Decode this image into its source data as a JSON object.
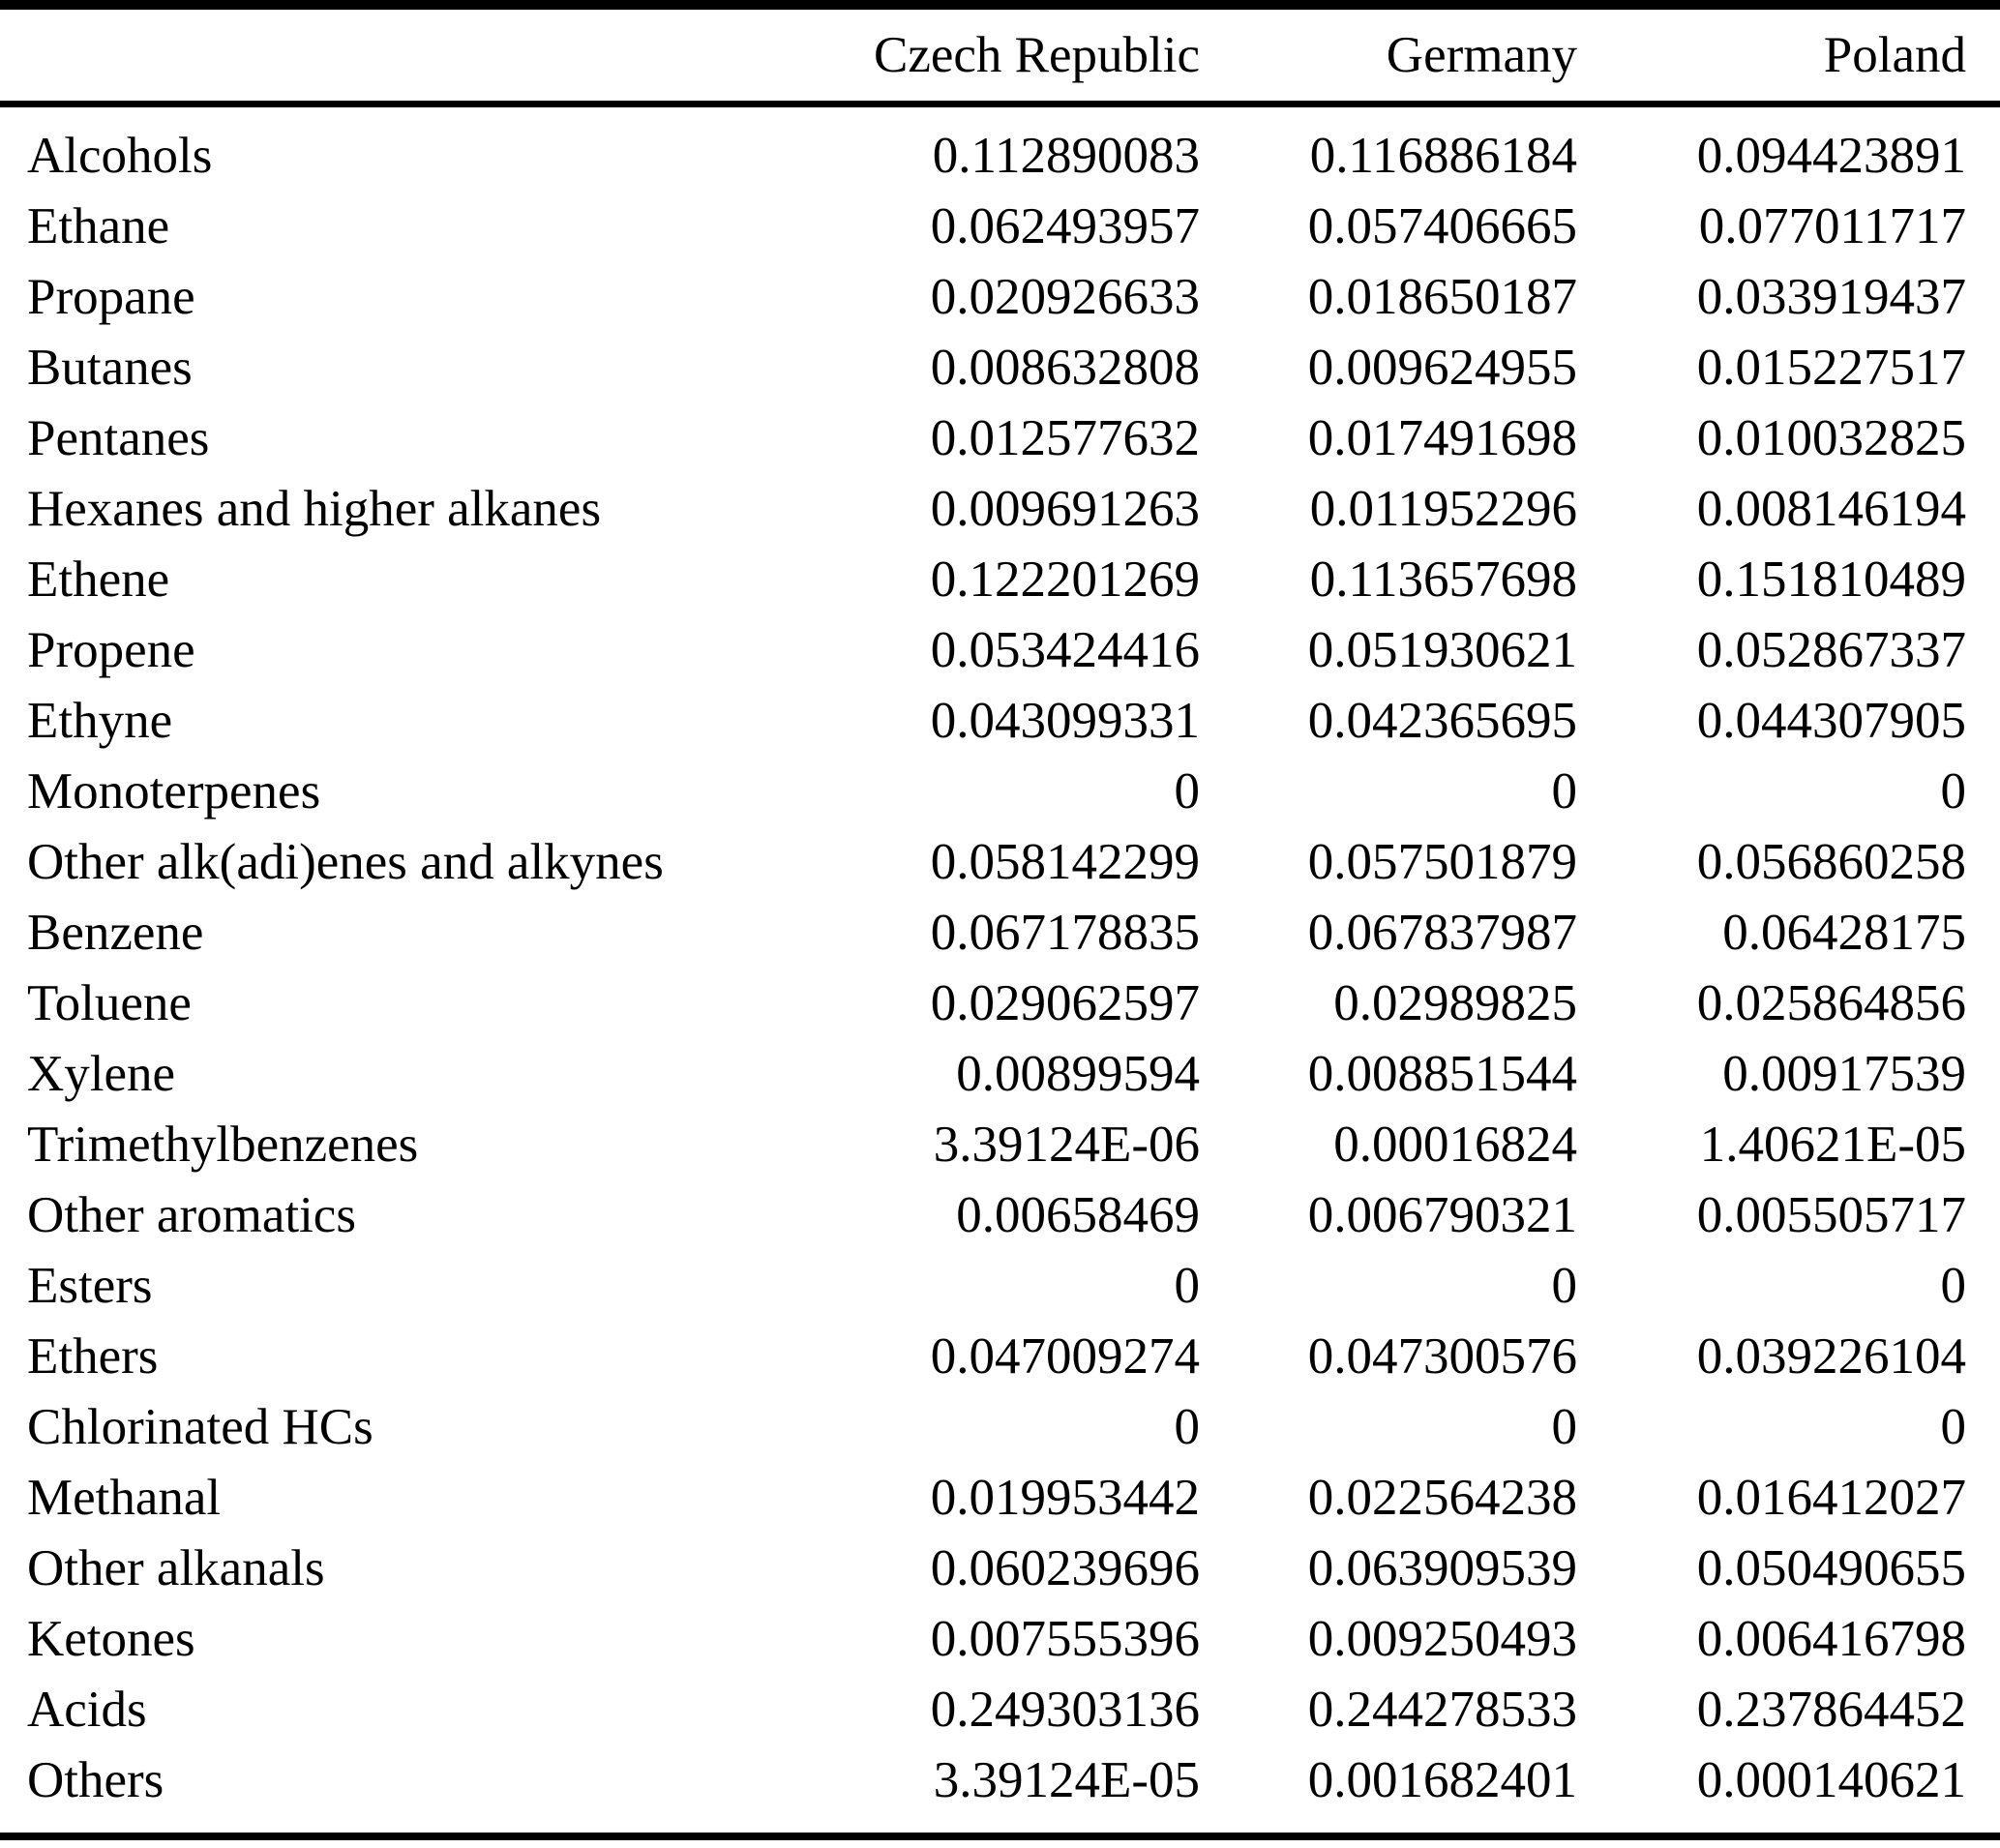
{
  "chart_data": {
    "type": "table",
    "columns": [
      "",
      "Czech Republic",
      "Germany",
      "Poland"
    ],
    "rows": [
      {
        "label": "Alcohols",
        "values": [
          "0.112890083",
          "0.116886184",
          "0.094423891"
        ]
      },
      {
        "label": "Ethane",
        "values": [
          "0.062493957",
          "0.057406665",
          "0.077011717"
        ]
      },
      {
        "label": "Propane",
        "values": [
          "0.020926633",
          "0.018650187",
          "0.033919437"
        ]
      },
      {
        "label": "Butanes",
        "values": [
          "0.008632808",
          "0.009624955",
          "0.015227517"
        ]
      },
      {
        "label": "Pentanes",
        "values": [
          "0.012577632",
          "0.017491698",
          "0.010032825"
        ]
      },
      {
        "label": "Hexanes and higher alkanes",
        "values": [
          "0.009691263",
          "0.011952296",
          "0.008146194"
        ]
      },
      {
        "label": "Ethene",
        "values": [
          "0.122201269",
          "0.113657698",
          "0.151810489"
        ]
      },
      {
        "label": "Propene",
        "values": [
          "0.053424416",
          "0.051930621",
          "0.052867337"
        ]
      },
      {
        "label": "Ethyne",
        "values": [
          "0.043099331",
          "0.042365695",
          "0.044307905"
        ]
      },
      {
        "label": "Monoterpenes",
        "values": [
          "0",
          "0",
          "0"
        ]
      },
      {
        "label": "Other alk(adi)enes and alkynes",
        "values": [
          "0.058142299",
          "0.057501879",
          "0.056860258"
        ]
      },
      {
        "label": "Benzene",
        "values": [
          "0.067178835",
          "0.067837987",
          "0.06428175"
        ]
      },
      {
        "label": "Toluene",
        "values": [
          "0.029062597",
          "0.02989825",
          "0.025864856"
        ]
      },
      {
        "label": "Xylene",
        "values": [
          "0.00899594",
          "0.008851544",
          "0.00917539"
        ]
      },
      {
        "label": "Trimethylbenzenes",
        "values": [
          "3.39124E-06",
          "0.00016824",
          "1.40621E-05"
        ]
      },
      {
        "label": "Other aromatics",
        "values": [
          "0.00658469",
          "0.006790321",
          "0.005505717"
        ]
      },
      {
        "label": "Esters",
        "values": [
          "0",
          "0",
          "0"
        ]
      },
      {
        "label": "Ethers",
        "values": [
          "0.047009274",
          "0.047300576",
          "0.039226104"
        ]
      },
      {
        "label": "Chlorinated HCs",
        "values": [
          "0",
          "0",
          "0"
        ]
      },
      {
        "label": "Methanal",
        "values": [
          "0.019953442",
          "0.022564238",
          "0.016412027"
        ]
      },
      {
        "label": "Other alkanals",
        "values": [
          "0.060239696",
          "0.063909539",
          "0.050490655"
        ]
      },
      {
        "label": "Ketones",
        "values": [
          "0.007555396",
          "0.009250493",
          "0.006416798"
        ]
      },
      {
        "label": "Acids",
        "values": [
          "0.249303136",
          "0.244278533",
          "0.237864452"
        ]
      },
      {
        "label": "Others",
        "values": [
          "3.39124E-05",
          "0.001682401",
          "0.000140621"
        ]
      }
    ]
  }
}
